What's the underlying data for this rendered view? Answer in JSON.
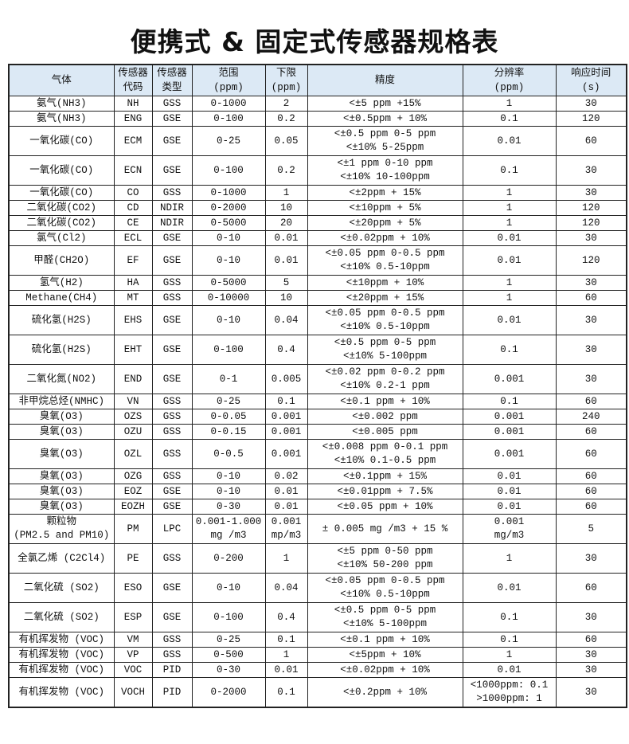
{
  "title": "便携式 & 固定式传感器规格表",
  "header_color": "#dce9f5",
  "columns": [
    [
      "气体"
    ],
    [
      "传感器",
      "代码"
    ],
    [
      "传感器",
      "类型"
    ],
    [
      "范围",
      "(ppm)"
    ],
    [
      "下限",
      "(ppm)"
    ],
    [
      "精度"
    ],
    [
      "分辨率",
      "(ppm)"
    ],
    [
      "响应时间",
      "(s)"
    ]
  ],
  "rows": [
    [
      [
        "氨气(NH3)"
      ],
      [
        "NH"
      ],
      [
        "GSS"
      ],
      [
        "0-1000"
      ],
      [
        "2"
      ],
      [
        "<±5 ppm +15%"
      ],
      [
        "1"
      ],
      [
        "30"
      ]
    ],
    [
      [
        "氨气(NH3)"
      ],
      [
        "ENG"
      ],
      [
        "GSE"
      ],
      [
        "0-100"
      ],
      [
        "0.2"
      ],
      [
        "<±0.5ppm + 10%"
      ],
      [
        "0.1"
      ],
      [
        "120"
      ]
    ],
    [
      [
        "一氧化碳(CO)"
      ],
      [
        "ECM"
      ],
      [
        "GSE"
      ],
      [
        "0-25"
      ],
      [
        "0.05"
      ],
      [
        "<±0.5 ppm 0-5 ppm",
        "<±10% 5-25ppm"
      ],
      [
        "0.01"
      ],
      [
        "60"
      ]
    ],
    [
      [
        "一氧化碳(CO)"
      ],
      [
        "ECN"
      ],
      [
        "GSE"
      ],
      [
        "0-100"
      ],
      [
        "0.2"
      ],
      [
        "<±1 ppm 0-10 ppm",
        "<±10% 10-100ppm"
      ],
      [
        "0.1"
      ],
      [
        "30"
      ]
    ],
    [
      [
        "一氧化碳(CO)"
      ],
      [
        "CO"
      ],
      [
        "GSS"
      ],
      [
        "0-1000"
      ],
      [
        "1"
      ],
      [
        "<±2ppm + 15%"
      ],
      [
        "1"
      ],
      [
        "30"
      ]
    ],
    [
      [
        "二氧化碳(CO2)"
      ],
      [
        "CD"
      ],
      [
        "NDIR"
      ],
      [
        "0-2000"
      ],
      [
        "10"
      ],
      [
        "<±10ppm + 5%"
      ],
      [
        "1"
      ],
      [
        "120"
      ]
    ],
    [
      [
        "二氧化碳(CO2)"
      ],
      [
        "CE"
      ],
      [
        "NDIR"
      ],
      [
        "0-5000"
      ],
      [
        "20"
      ],
      [
        "<±20ppm + 5%"
      ],
      [
        "1"
      ],
      [
        "120"
      ]
    ],
    [
      [
        "氯气(Cl2)"
      ],
      [
        "ECL"
      ],
      [
        "GSE"
      ],
      [
        "0-10"
      ],
      [
        "0.01"
      ],
      [
        "<±0.02ppm + 10%"
      ],
      [
        "0.01"
      ],
      [
        "30"
      ]
    ],
    [
      [
        "甲醛(CH2O)"
      ],
      [
        "EF"
      ],
      [
        "GSE"
      ],
      [
        "0-10"
      ],
      [
        "0.01"
      ],
      [
        "<±0.05 ppm 0-0.5 ppm",
        "<±10% 0.5-10ppm"
      ],
      [
        "0.01"
      ],
      [
        "120"
      ]
    ],
    [
      [
        "氢气(H2)"
      ],
      [
        "HA"
      ],
      [
        "GSS"
      ],
      [
        "0-5000"
      ],
      [
        "5"
      ],
      [
        "<±10ppm + 10%"
      ],
      [
        "1"
      ],
      [
        "30"
      ]
    ],
    [
      [
        "Methane(CH4)"
      ],
      [
        "MT"
      ],
      [
        "GSS"
      ],
      [
        "0-10000"
      ],
      [
        "10"
      ],
      [
        "<±20ppm + 15%"
      ],
      [
        "1"
      ],
      [
        "60"
      ]
    ],
    [
      [
        "硫化氢(H2S)"
      ],
      [
        "EHS"
      ],
      [
        "GSE"
      ],
      [
        "0-10"
      ],
      [
        "0.04"
      ],
      [
        "<±0.05 ppm 0-0.5 ppm",
        "<±10% 0.5-10ppm"
      ],
      [
        "0.01"
      ],
      [
        "30"
      ]
    ],
    [
      [
        "硫化氢(H2S)"
      ],
      [
        "EHT"
      ],
      [
        "GSE"
      ],
      [
        "0-100"
      ],
      [
        "0.4"
      ],
      [
        "<±0.5 ppm 0-5 ppm",
        "<±10% 5-100ppm"
      ],
      [
        "0.1"
      ],
      [
        "30"
      ]
    ],
    [
      [
        "二氧化氮(NO2)"
      ],
      [
        "END"
      ],
      [
        "GSE"
      ],
      [
        "0-1"
      ],
      [
        "0.005"
      ],
      [
        "<±0.02 ppm 0-0.2 ppm",
        "<±10% 0.2-1 ppm"
      ],
      [
        "0.001"
      ],
      [
        "30"
      ]
    ],
    [
      [
        "非甲烷总烃(NMHC)"
      ],
      [
        "VN"
      ],
      [
        "GSS"
      ],
      [
        "0-25"
      ],
      [
        "0.1"
      ],
      [
        "<±0.1 ppm + 10%"
      ],
      [
        "0.1"
      ],
      [
        "60"
      ]
    ],
    [
      [
        "臭氧(O3)"
      ],
      [
        "OZS"
      ],
      [
        "GSS"
      ],
      [
        "0-0.05"
      ],
      [
        "0.001"
      ],
      [
        "<±0.002 ppm"
      ],
      [
        "0.001"
      ],
      [
        "240"
      ]
    ],
    [
      [
        "臭氧(O3)"
      ],
      [
        "OZU"
      ],
      [
        "GSS"
      ],
      [
        "0-0.15"
      ],
      [
        "0.001"
      ],
      [
        "<±0.005 ppm"
      ],
      [
        "0.001"
      ],
      [
        "60"
      ]
    ],
    [
      [
        "臭氧(O3)"
      ],
      [
        "OZL"
      ],
      [
        "GSS"
      ],
      [
        "0-0.5"
      ],
      [
        "0.001"
      ],
      [
        "<±0.008 ppm 0-0.1 ppm",
        "<±10% 0.1-0.5 ppm"
      ],
      [
        "0.001"
      ],
      [
        "60"
      ]
    ],
    [
      [
        "臭氧(O3)"
      ],
      [
        "OZG"
      ],
      [
        "GSS"
      ],
      [
        "0-10"
      ],
      [
        "0.02"
      ],
      [
        "<±0.1ppm + 15%"
      ],
      [
        "0.01"
      ],
      [
        "60"
      ]
    ],
    [
      [
        "臭氧(O3)"
      ],
      [
        "EOZ"
      ],
      [
        "GSE"
      ],
      [
        "0-10"
      ],
      [
        "0.01"
      ],
      [
        "<±0.01ppm + 7.5%"
      ],
      [
        "0.01"
      ],
      [
        "60"
      ]
    ],
    [
      [
        "臭氧(O3)"
      ],
      [
        "EOZH"
      ],
      [
        "GSE"
      ],
      [
        "0-30"
      ],
      [
        "0.01"
      ],
      [
        "<±0.05 ppm + 10%"
      ],
      [
        "0.01"
      ],
      [
        "60"
      ]
    ],
    [
      [
        "颗粒物",
        "(PM2.5 and PM10)"
      ],
      [
        "PM"
      ],
      [
        "LPC"
      ],
      [
        "0.001-1.000",
        "mg /m3"
      ],
      [
        "0.001",
        "mp/m3"
      ],
      [
        "± 0.005 mg /m3 + 15 %"
      ],
      [
        "0.001",
        "mg/m3"
      ],
      [
        "5"
      ]
    ],
    [
      [
        "全氯乙烯 (C2Cl4)"
      ],
      [
        "PE"
      ],
      [
        "GSS"
      ],
      [
        "0-200"
      ],
      [
        "1"
      ],
      [
        "<±5 ppm 0-50 ppm",
        "<±10% 50-200 ppm"
      ],
      [
        "1"
      ],
      [
        "30"
      ]
    ],
    [
      [
        "二氧化硫 (SO2)"
      ],
      [
        "ESO"
      ],
      [
        "GSE"
      ],
      [
        "0-10"
      ],
      [
        "0.04"
      ],
      [
        "<±0.05 ppm 0-0.5 ppm",
        "<±10% 0.5-10ppm"
      ],
      [
        "0.01"
      ],
      [
        "60"
      ]
    ],
    [
      [
        "二氧化硫 (SO2)"
      ],
      [
        "ESP"
      ],
      [
        "GSE"
      ],
      [
        "0-100"
      ],
      [
        "0.4"
      ],
      [
        "<±0.5 ppm 0-5 ppm",
        "<±10% 5-100ppm"
      ],
      [
        "0.1"
      ],
      [
        "30"
      ]
    ],
    [
      [
        "有机挥发物 (VOC)"
      ],
      [
        "VM"
      ],
      [
        "GSS"
      ],
      [
        "0-25"
      ],
      [
        "0.1"
      ],
      [
        "<±0.1 ppm + 10%"
      ],
      [
        "0.1"
      ],
      [
        "60"
      ]
    ],
    [
      [
        "有机挥发物 (VOC)"
      ],
      [
        "VP"
      ],
      [
        "GSS"
      ],
      [
        "0-500"
      ],
      [
        "1"
      ],
      [
        "<±5ppm + 10%"
      ],
      [
        "1"
      ],
      [
        "30"
      ]
    ],
    [
      [
        "有机挥发物 (VOC)"
      ],
      [
        "VOC"
      ],
      [
        "PID"
      ],
      [
        "0-30"
      ],
      [
        "0.01"
      ],
      [
        "<±0.02ppm + 10%"
      ],
      [
        "0.01"
      ],
      [
        "30"
      ]
    ],
    [
      [
        "有机挥发物 (VOC)"
      ],
      [
        "VOCH"
      ],
      [
        "PID"
      ],
      [
        "0-2000"
      ],
      [
        "0.1"
      ],
      [
        "<±0.2ppm + 10%"
      ],
      [
        "<1000ppm: 0.1",
        ">1000ppm: 1"
      ],
      [
        "30"
      ]
    ]
  ]
}
